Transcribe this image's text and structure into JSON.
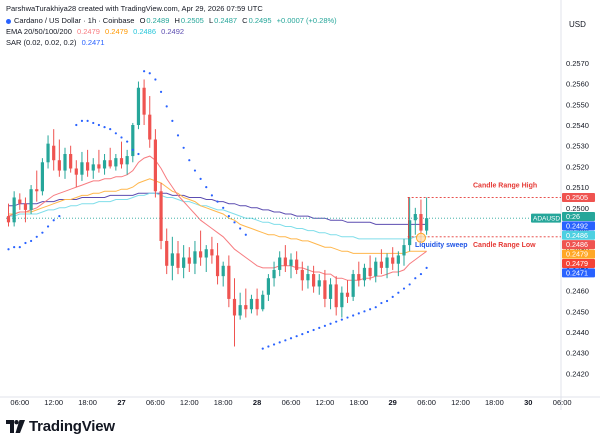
{
  "credit": "ParshwaTurakhiya28 created with TradingView.com, Apr 29, 2026 07:59 UTC",
  "header": {
    "symbol": "Cardano / US Dollar · 1h · Coinbase",
    "o_label": "O",
    "o": "0.2489",
    "h_label": "H",
    "h": "0.2505",
    "l_label": "L",
    "l": "0.2487",
    "c_label": "C",
    "c": "0.2495",
    "change": "+0.0007 (+0.28%)",
    "ema_label": "EMA 20/50/100/200",
    "ema20": "0.2479",
    "ema50": "0.2479",
    "ema100": "0.2486",
    "ema200": "0.2492",
    "sar_label": "SAR (0.02, 0.02, 0.2)",
    "sar": "0.2471"
  },
  "colors": {
    "up": "#26a69a",
    "down": "#ef5350",
    "ema20": "#f77c80",
    "ema50": "#ffb74d",
    "ema100": "#80deea",
    "ema200": "#5c4db1",
    "sar": "#2962ff",
    "annotation": "#e53935",
    "sweep": "#1e53e5",
    "axis_text": "#131722"
  },
  "footer": {
    "logo": "TradingView",
    "icon": "tradingview-logo-icon"
  },
  "chart_data": {
    "type": "candlestick",
    "y_axis": {
      "title": "USD",
      "ylim": [
        0.2412,
        0.2583
      ],
      "ticks": [
        "0.2570",
        "0.2560",
        "0.2550",
        "0.2540",
        "0.2530",
        "0.2520",
        "0.2510",
        "0.2500",
        "0.2490",
        "0.2480",
        "0.2470",
        "0.2460",
        "0.2450",
        "0.2440",
        "0.2430",
        "0.2420"
      ]
    },
    "x_axis": {
      "labels": [
        "06:00",
        "12:00",
        "18:00",
        "27",
        "06:00",
        "12:00",
        "18:00",
        "28",
        "06:00",
        "12:00",
        "18:00",
        "29",
        "06:00",
        "12:00",
        "18:00",
        "30",
        "06:00"
      ],
      "label_index": [
        2,
        8,
        14,
        20,
        26,
        32,
        38,
        44,
        50,
        56,
        62,
        68,
        74,
        80,
        86,
        92,
        98
      ],
      "bold": [
        "27",
        "28",
        "29",
        "30"
      ]
    },
    "candles": [
      [
        0.2496,
        0.2502,
        0.2491,
        0.2493
      ],
      [
        0.2493,
        0.2508,
        0.2491,
        0.2505
      ],
      [
        0.2504,
        0.2507,
        0.2499,
        0.2502
      ],
      [
        0.2502,
        0.2505,
        0.2493,
        0.2499
      ],
      [
        0.2499,
        0.2511,
        0.2497,
        0.2509
      ],
      [
        0.2509,
        0.2518,
        0.2503,
        0.2508
      ],
      [
        0.2508,
        0.2524,
        0.2506,
        0.2522
      ],
      [
        0.2522,
        0.2535,
        0.2519,
        0.2531
      ],
      [
        0.253,
        0.2538,
        0.2518,
        0.2523
      ],
      [
        0.2523,
        0.2533,
        0.2515,
        0.2518
      ],
      [
        0.2518,
        0.2529,
        0.2514,
        0.2526
      ],
      [
        0.2526,
        0.253,
        0.2517,
        0.2519
      ],
      [
        0.2519,
        0.2523,
        0.251,
        0.2516
      ],
      [
        0.2516,
        0.2527,
        0.2513,
        0.2522
      ],
      [
        0.2522,
        0.2528,
        0.2515,
        0.2518
      ],
      [
        0.2518,
        0.2524,
        0.2514,
        0.2521
      ],
      [
        0.2521,
        0.2528,
        0.2517,
        0.2519
      ],
      [
        0.2519,
        0.2526,
        0.2516,
        0.2523
      ],
      [
        0.2523,
        0.2529,
        0.2519,
        0.252
      ],
      [
        0.252,
        0.2526,
        0.2518,
        0.2524
      ],
      [
        0.2524,
        0.2532,
        0.2519,
        0.2521
      ],
      [
        0.2521,
        0.2528,
        0.2516,
        0.2525
      ],
      [
        0.2525,
        0.2541,
        0.2522,
        0.254
      ],
      [
        0.254,
        0.2561,
        0.2538,
        0.2558
      ],
      [
        0.2558,
        0.2562,
        0.254,
        0.2545
      ],
      [
        0.2545,
        0.2554,
        0.2529,
        0.2533
      ],
      [
        0.2533,
        0.2538,
        0.2505,
        0.2508
      ],
      [
        0.2508,
        0.2512,
        0.248,
        0.2484
      ],
      [
        0.2484,
        0.249,
        0.2468,
        0.2472
      ],
      [
        0.2472,
        0.2486,
        0.2465,
        0.2478
      ],
      [
        0.2478,
        0.2484,
        0.2468,
        0.2471
      ],
      [
        0.2471,
        0.2482,
        0.2466,
        0.2476
      ],
      [
        0.2476,
        0.2481,
        0.2469,
        0.2473
      ],
      [
        0.2473,
        0.2484,
        0.2468,
        0.2479
      ],
      [
        0.2479,
        0.2489,
        0.2472,
        0.2476
      ],
      [
        0.2476,
        0.2482,
        0.2469,
        0.248
      ],
      [
        0.248,
        0.2486,
        0.2473,
        0.2477
      ],
      [
        0.2477,
        0.2483,
        0.2463,
        0.2467
      ],
      [
        0.2467,
        0.2474,
        0.2462,
        0.2472
      ],
      [
        0.2472,
        0.2477,
        0.2452,
        0.2456
      ],
      [
        0.2456,
        0.2466,
        0.2433,
        0.2448
      ],
      [
        0.2448,
        0.2459,
        0.2446,
        0.2453
      ],
      [
        0.2453,
        0.2461,
        0.2447,
        0.2451
      ],
      [
        0.2451,
        0.2458,
        0.2449,
        0.2456
      ],
      [
        0.2456,
        0.2461,
        0.2448,
        0.2451
      ],
      [
        0.2451,
        0.246,
        0.245,
        0.2458
      ],
      [
        0.2458,
        0.2468,
        0.2455,
        0.2466
      ],
      [
        0.2466,
        0.2474,
        0.2462,
        0.247
      ],
      [
        0.247,
        0.2479,
        0.2467,
        0.2476
      ],
      [
        0.2476,
        0.2482,
        0.2469,
        0.2472
      ],
      [
        0.2472,
        0.2478,
        0.2466,
        0.2475
      ],
      [
        0.2475,
        0.2479,
        0.2468,
        0.247
      ],
      [
        0.247,
        0.2474,
        0.246,
        0.2465
      ],
      [
        0.2465,
        0.2472,
        0.2461,
        0.2468
      ],
      [
        0.2468,
        0.2472,
        0.2459,
        0.2462
      ],
      [
        0.2462,
        0.2468,
        0.2458,
        0.2465
      ],
      [
        0.2465,
        0.247,
        0.2452,
        0.2456
      ],
      [
        0.2456,
        0.2466,
        0.2451,
        0.2463
      ],
      [
        0.2463,
        0.2467,
        0.2448,
        0.2452
      ],
      [
        0.2452,
        0.2462,
        0.2447,
        0.2459
      ],
      [
        0.2459,
        0.2465,
        0.2454,
        0.2457
      ],
      [
        0.2457,
        0.247,
        0.2455,
        0.2468
      ],
      [
        0.2468,
        0.2474,
        0.2462,
        0.2465
      ],
      [
        0.2465,
        0.2473,
        0.2462,
        0.2471
      ],
      [
        0.2471,
        0.2477,
        0.2465,
        0.2467
      ],
      [
        0.2467,
        0.2476,
        0.2464,
        0.2474
      ],
      [
        0.2474,
        0.248,
        0.2468,
        0.2471
      ],
      [
        0.2471,
        0.2478,
        0.2466,
        0.2476
      ],
      [
        0.2476,
        0.2481,
        0.247,
        0.2473
      ],
      [
        0.2473,
        0.2479,
        0.2467,
        0.2477
      ],
      [
        0.2477,
        0.2485,
        0.2472,
        0.2482
      ],
      [
        0.2482,
        0.2505,
        0.2479,
        0.2494
      ],
      [
        0.2494,
        0.25,
        0.2487,
        0.2497
      ],
      [
        0.2497,
        0.2504,
        0.2484,
        0.2489
      ],
      [
        0.2489,
        0.2505,
        0.2487,
        0.2495
      ]
    ],
    "ema20": [
      0.2496,
      0.2497,
      0.2498,
      0.2498,
      0.2499,
      0.25,
      0.2502,
      0.2504,
      0.2506,
      0.2507,
      0.2508,
      0.2509,
      0.251,
      0.2511,
      0.2512,
      0.2513,
      0.2513,
      0.2514,
      0.2514,
      0.2515,
      0.2515,
      0.2516,
      0.2518,
      0.2522,
      0.2524,
      0.2525,
      0.2523,
      0.2519,
      0.2514,
      0.251,
      0.2506,
      0.2503,
      0.25,
      0.2497,
      0.2494,
      0.2492,
      0.249,
      0.2488,
      0.2486,
      0.2483,
      0.248,
      0.2478,
      0.2476,
      0.2474,
      0.2472,
      0.2471,
      0.2471,
      0.2471,
      0.2472,
      0.2472,
      0.2472,
      0.2471,
      0.2471,
      0.247,
      0.2469,
      0.2469,
      0.2468,
      0.2468,
      0.2466,
      0.2466,
      0.2465,
      0.2465,
      0.2465,
      0.2466,
      0.2466,
      0.2467,
      0.2467,
      0.2468,
      0.2469,
      0.2469,
      0.247,
      0.2473,
      0.2475,
      0.2477,
      0.2479
    ],
    "ema50": [
      0.2497,
      0.2497,
      0.2498,
      0.2498,
      0.2498,
      0.2499,
      0.25,
      0.2501,
      0.2502,
      0.2503,
      0.2504,
      0.2504,
      0.2505,
      0.2506,
      0.2506,
      0.2507,
      0.2507,
      0.2508,
      0.2508,
      0.2508,
      0.2509,
      0.2509,
      0.251,
      0.2512,
      0.2513,
      0.2514,
      0.2513,
      0.2512,
      0.251,
      0.2508,
      0.2507,
      0.2505,
      0.2504,
      0.2503,
      0.2501,
      0.25,
      0.2499,
      0.2498,
      0.2497,
      0.2495,
      0.2494,
      0.2492,
      0.2491,
      0.249,
      0.2489,
      0.2488,
      0.2487,
      0.2487,
      0.2486,
      0.2486,
      0.2485,
      0.2485,
      0.2484,
      0.2484,
      0.2483,
      0.2482,
      0.2481,
      0.2481,
      0.248,
      0.2479,
      0.2479,
      0.2478,
      0.2478,
      0.2478,
      0.2478,
      0.2478,
      0.2478,
      0.2478,
      0.2478,
      0.2478,
      0.2478,
      0.2479,
      0.2479,
      0.2479,
      0.2479
    ],
    "ema100": [
      0.2496,
      0.2496,
      0.2497,
      0.2497,
      0.2497,
      0.2497,
      0.2498,
      0.2499,
      0.2499,
      0.25,
      0.25,
      0.2501,
      0.2501,
      0.2502,
      0.2502,
      0.2502,
      0.2503,
      0.2503,
      0.2503,
      0.2504,
      0.2504,
      0.2504,
      0.2505,
      0.2506,
      0.2506,
      0.2507,
      0.2507,
      0.2506,
      0.2505,
      0.2505,
      0.2504,
      0.2503,
      0.2503,
      0.2502,
      0.2501,
      0.2501,
      0.25,
      0.2499,
      0.2499,
      0.2498,
      0.2497,
      0.2496,
      0.2495,
      0.2495,
      0.2494,
      0.2493,
      0.2493,
      0.2492,
      0.2492,
      0.2491,
      0.2491,
      0.249,
      0.249,
      0.2489,
      0.2489,
      0.2488,
      0.2488,
      0.2487,
      0.2487,
      0.2486,
      0.2486,
      0.2486,
      0.2485,
      0.2485,
      0.2485,
      0.2485,
      0.2485,
      0.2485,
      0.2485,
      0.2485,
      0.2485,
      0.2485,
      0.2486,
      0.2486,
      0.2486
    ],
    "ema200": [
      0.2501,
      0.2501,
      0.2502,
      0.2502,
      0.2502,
      0.2502,
      0.2503,
      0.2503,
      0.2503,
      0.2504,
      0.2504,
      0.2504,
      0.2504,
      0.2505,
      0.2505,
      0.2505,
      0.2505,
      0.2505,
      0.2506,
      0.2506,
      0.2506,
      0.2506,
      0.2506,
      0.2507,
      0.2507,
      0.2507,
      0.2507,
      0.2507,
      0.2507,
      0.2506,
      0.2506,
      0.2506,
      0.2505,
      0.2505,
      0.2505,
      0.2504,
      0.2504,
      0.2503,
      0.2503,
      0.2502,
      0.2502,
      0.2501,
      0.2501,
      0.25,
      0.25,
      0.2499,
      0.2499,
      0.2498,
      0.2498,
      0.2497,
      0.2497,
      0.2496,
      0.2496,
      0.2496,
      0.2495,
      0.2495,
      0.2495,
      0.2494,
      0.2494,
      0.2494,
      0.2493,
      0.2493,
      0.2493,
      0.2493,
      0.2493,
      0.2492,
      0.2492,
      0.2492,
      0.2492,
      0.2492,
      0.2492,
      0.2492,
      0.2492,
      0.2492,
      0.2492
    ],
    "sar": [
      0.248,
      0.2481,
      0.2481,
      0.2483,
      0.2484,
      0.2486,
      0.2488,
      0.2491,
      0.2494,
      0.2496,
      null,
      null,
      0.254,
      0.2542,
      0.2542,
      0.2541,
      0.254,
      0.2539,
      0.2538,
      0.2536,
      0.2534,
      0.2532,
      0.2528,
      0.2526,
      0.2566,
      0.2565,
      0.2562,
      0.2556,
      0.2549,
      0.2542,
      0.2535,
      0.2529,
      0.2523,
      0.2518,
      0.2514,
      0.251,
      0.2506,
      0.2503,
      0.25,
      0.2496,
      0.2493,
      0.249,
      0.2487,
      null,
      null,
      0.2432,
      0.2433,
      0.2434,
      0.2435,
      0.2436,
      0.2437,
      0.2438,
      0.2439,
      0.244,
      0.2441,
      0.2442,
      0.2443,
      0.2444,
      0.2445,
      0.2446,
      0.2447,
      0.2448,
      0.2449,
      0.245,
      0.2451,
      0.2452,
      0.2454,
      0.2455,
      0.2457,
      0.2459,
      0.2461,
      0.2463,
      0.2466,
      0.2468,
      0.2471
    ],
    "levels": {
      "candle_range_high": {
        "label": "Candle Range High",
        "value": 0.2505
      },
      "candle_range_low": {
        "label": "Candle Range Low",
        "value": 0.2486
      },
      "sweep_label": "Liquidity sweep"
    },
    "price_tags": [
      {
        "text": "0.2505",
        "value": 0.2505,
        "color": "#ef5350"
      },
      {
        "text": "ADAUSD",
        "value": 0.2495,
        "color": "#26a69a"
      },
      {
        "text": "0:26",
        "value": 0.2495,
        "color": "#26a69a"
      },
      {
        "text": "0.2492",
        "value": 0.2492,
        "color": "#2962ff"
      },
      {
        "text": "0.2486",
        "value": 0.2486,
        "color": "#4dd0e1"
      },
      {
        "text": "0.2486",
        "value": 0.2486,
        "color": "#ef5350"
      },
      {
        "text": "0.2479",
        "value": 0.2479,
        "color": "#ffa726"
      },
      {
        "text": "0.2479",
        "value": 0.2479,
        "color": "#f44336"
      },
      {
        "text": "0.2471",
        "value": 0.2471,
        "color": "#2962ff"
      }
    ]
  }
}
